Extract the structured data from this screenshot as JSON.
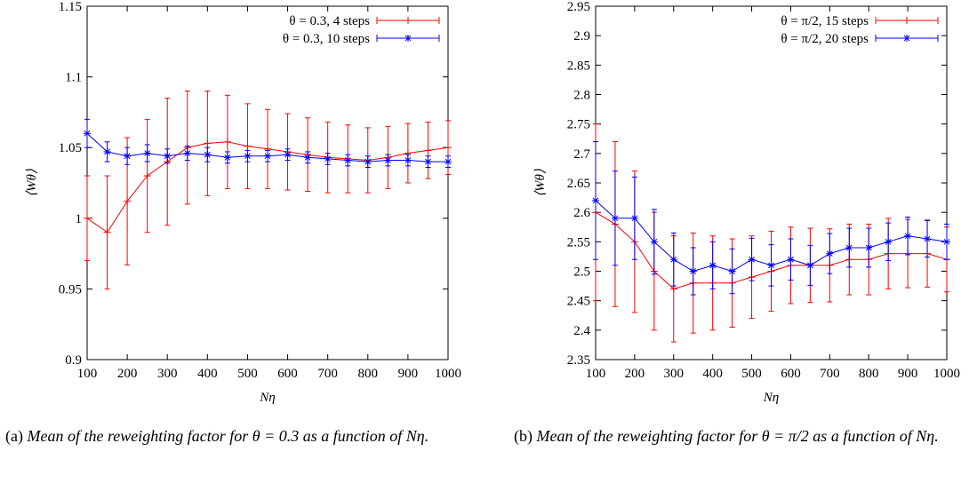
{
  "figure": {
    "captions": [
      {
        "prefix": "(a)",
        "text": "Mean of the reweighting factor for θ = 0.3 as a function of Nη."
      },
      {
        "prefix": "(b)",
        "text": "Mean of the reweighting factor for θ = π/2 as a function of Nη."
      }
    ]
  },
  "chart_data": [
    {
      "type": "line",
      "panel": "a",
      "title": "",
      "xlabel": "Nη",
      "ylabel": "⟨Wθ⟩",
      "xlim": [
        100,
        1000
      ],
      "ylim": [
        0.9,
        1.15
      ],
      "xticks": [
        100,
        200,
        300,
        400,
        500,
        600,
        700,
        800,
        900,
        1000
      ],
      "yticks": [
        0.9,
        0.95,
        1,
        1.05,
        1.1,
        1.15
      ],
      "ytick_labels": [
        "0.9",
        "0.95",
        "1",
        "1.05",
        "1.1",
        "1.15"
      ],
      "grid": false,
      "legend_position": "top-right",
      "error_bars": true,
      "series": [
        {
          "name": "θ = 0.3, 4 steps",
          "color": "#ff0000",
          "marker": "plus",
          "x": [
            100,
            150,
            200,
            250,
            300,
            350,
            400,
            450,
            500,
            550,
            600,
            650,
            700,
            750,
            800,
            850,
            900,
            950,
            1000
          ],
          "y": [
            1.0,
            0.99,
            1.012,
            1.03,
            1.04,
            1.05,
            1.053,
            1.054,
            1.051,
            1.049,
            1.047,
            1.045,
            1.043,
            1.042,
            1.041,
            1.043,
            1.046,
            1.048,
            1.05
          ],
          "err": [
            0.03,
            0.04,
            0.045,
            0.04,
            0.045,
            0.04,
            0.037,
            0.033,
            0.03,
            0.028,
            0.027,
            0.026,
            0.025,
            0.024,
            0.023,
            0.022,
            0.021,
            0.02,
            0.019
          ]
        },
        {
          "name": "θ = 0.3, 10 steps",
          "color": "#0000ff",
          "marker": "star",
          "x": [
            100,
            150,
            200,
            250,
            300,
            350,
            400,
            450,
            500,
            550,
            600,
            650,
            700,
            750,
            800,
            850,
            900,
            950,
            1000
          ],
          "y": [
            1.06,
            1.047,
            1.044,
            1.046,
            1.044,
            1.046,
            1.045,
            1.043,
            1.044,
            1.044,
            1.045,
            1.043,
            1.042,
            1.041,
            1.04,
            1.041,
            1.041,
            1.04,
            1.04
          ],
          "err": [
            0.01,
            0.007,
            0.006,
            0.006,
            0.005,
            0.005,
            0.005,
            0.004,
            0.004,
            0.004,
            0.004,
            0.004,
            0.004,
            0.004,
            0.004,
            0.004,
            0.004,
            0.004,
            0.004
          ]
        }
      ]
    },
    {
      "type": "line",
      "panel": "b",
      "title": "",
      "xlabel": "Nη",
      "ylabel": "⟨Wθ⟩",
      "xlim": [
        100,
        1000
      ],
      "ylim": [
        2.35,
        2.95
      ],
      "xticks": [
        100,
        200,
        300,
        400,
        500,
        600,
        700,
        800,
        900,
        1000
      ],
      "yticks": [
        2.35,
        2.4,
        2.45,
        2.5,
        2.55,
        2.6,
        2.65,
        2.7,
        2.75,
        2.8,
        2.85,
        2.9,
        2.95
      ],
      "ytick_labels": [
        "2.35",
        "2.4",
        "2.45",
        "2.5",
        "2.55",
        "2.6",
        "2.65",
        "2.7",
        "2.75",
        "2.8",
        "2.85",
        "2.9",
        "2.95"
      ],
      "grid": false,
      "legend_position": "top-right",
      "error_bars": true,
      "series": [
        {
          "name": "θ = π/2, 15 steps",
          "color": "#ff0000",
          "marker": "plus",
          "x": [
            100,
            150,
            200,
            250,
            300,
            350,
            400,
            450,
            500,
            550,
            600,
            650,
            700,
            750,
            800,
            850,
            900,
            950,
            1000
          ],
          "y": [
            2.6,
            2.58,
            2.55,
            2.5,
            2.47,
            2.48,
            2.48,
            2.48,
            2.49,
            2.5,
            2.51,
            2.51,
            2.51,
            2.52,
            2.52,
            2.53,
            2.53,
            2.53,
            2.52
          ],
          "err": [
            0.15,
            0.14,
            0.12,
            0.1,
            0.09,
            0.085,
            0.08,
            0.075,
            0.07,
            0.068,
            0.065,
            0.063,
            0.062,
            0.06,
            0.06,
            0.06,
            0.058,
            0.057,
            0.055
          ]
        },
        {
          "name": "θ = π/2, 20 steps",
          "color": "#0000ff",
          "marker": "star",
          "x": [
            100,
            150,
            200,
            250,
            300,
            350,
            400,
            450,
            500,
            550,
            600,
            650,
            700,
            750,
            800,
            850,
            900,
            950,
            1000
          ],
          "y": [
            2.62,
            2.59,
            2.59,
            2.55,
            2.52,
            2.5,
            2.51,
            2.5,
            2.52,
            2.51,
            2.52,
            2.51,
            2.53,
            2.54,
            2.54,
            2.55,
            2.56,
            2.555,
            2.55
          ],
          "err": [
            0.1,
            0.08,
            0.07,
            0.055,
            0.045,
            0.04,
            0.04,
            0.038,
            0.036,
            0.035,
            0.035,
            0.034,
            0.034,
            0.033,
            0.033,
            0.032,
            0.032,
            0.031,
            0.03
          ]
        }
      ]
    }
  ]
}
